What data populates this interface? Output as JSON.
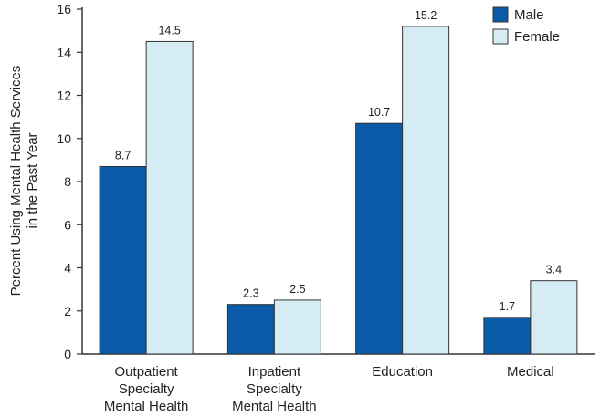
{
  "chart_data": {
    "type": "bar",
    "categories": [
      [
        "Outpatient",
        "Specialty",
        "Mental Health"
      ],
      [
        "Inpatient",
        "Specialty",
        "Mental Health"
      ],
      [
        "Education"
      ],
      [
        "Medical"
      ]
    ],
    "series": [
      {
        "name": "Male",
        "color": "#0a5ca8",
        "values": [
          8.7,
          2.3,
          10.7,
          1.7
        ],
        "labels": [
          "8.7",
          "2.3",
          "10.7",
          "1.7"
        ]
      },
      {
        "name": "Female",
        "color": "#d6ecf5",
        "values": [
          14.5,
          2.5,
          15.2,
          3.4
        ],
        "labels": [
          "14.5",
          "2.5",
          "15.2",
          "3.4"
        ]
      }
    ],
    "ylabel": [
      "Percent Using Mental Health Services",
      "in the Past Year"
    ],
    "xlabel": "",
    "ylim": [
      0,
      16
    ],
    "yticks": [
      "0",
      "2",
      "4",
      "6",
      "8",
      "10",
      "12",
      "14",
      "16"
    ],
    "legend_position": "top-right",
    "grid": false,
    "edge_color": "#333333"
  }
}
